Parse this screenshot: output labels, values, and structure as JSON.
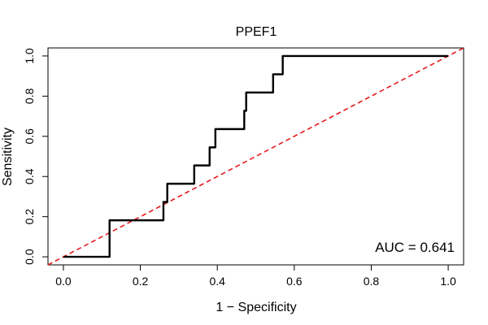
{
  "chart_data": {
    "type": "line",
    "title": "PPEF1",
    "xlabel": "1 − Specificity",
    "ylabel": "Sensitivity",
    "xlim": [
      -0.04,
      1.04
    ],
    "ylim": [
      -0.04,
      1.04
    ],
    "x_ticks": [
      0.0,
      0.2,
      0.4,
      0.6,
      0.8,
      1.0
    ],
    "x_tick_labels": [
      "0.0",
      "0.2",
      "0.4",
      "0.6",
      "0.8",
      "1.0"
    ],
    "y_ticks": [
      0.0,
      0.2,
      0.4,
      0.6,
      0.8,
      1.0
    ],
    "y_tick_labels": [
      "0.0",
      "0.2",
      "0.4",
      "0.6",
      "0.8",
      "1.0"
    ],
    "grid": false,
    "annotation": "AUC = 0.641",
    "series": [
      {
        "role": "roc-curve",
        "color": "#000000",
        "x": [
          0.0,
          0.12,
          0.12,
          0.26,
          0.26,
          0.265,
          0.265,
          0.27,
          0.27,
          0.34,
          0.34,
          0.38,
          0.38,
          0.395,
          0.395,
          0.47,
          0.47,
          0.475,
          0.475,
          0.545,
          0.545,
          0.57,
          0.57,
          1.0
        ],
        "y": [
          0.0,
          0.0,
          0.182,
          0.182,
          0.273,
          0.273,
          0.273,
          0.273,
          0.364,
          0.364,
          0.455,
          0.455,
          0.545,
          0.545,
          0.636,
          0.636,
          0.727,
          0.727,
          0.818,
          0.818,
          0.909,
          0.909,
          1.0,
          1.0
        ]
      },
      {
        "role": "diagonal-reference",
        "color": "#e41a1c",
        "dashed": true,
        "x": [
          -0.04,
          1.04
        ],
        "y": [
          -0.04,
          1.04
        ]
      }
    ]
  }
}
